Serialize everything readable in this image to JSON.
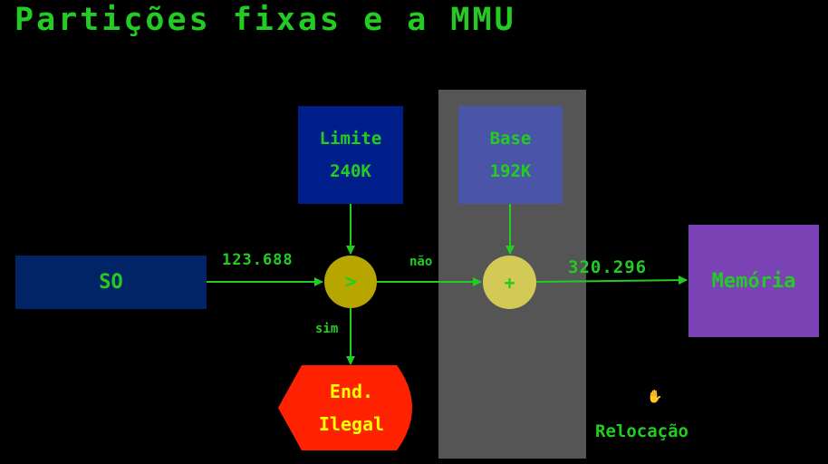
{
  "title": "Partições fixas e a MMU",
  "so_label": "SO",
  "limite": {
    "label": "Limite",
    "value": "240K"
  },
  "base": {
    "label": "Base",
    "value": "192K"
  },
  "memoria_label": "Memória",
  "compare_symbol": ">",
  "add_symbol": "+",
  "logical_address": "123.688",
  "physical_address": "320.296",
  "branch_no": "não",
  "branch_yes": "sim",
  "illegal": {
    "line1": "End.",
    "line2": "Ilegal"
  },
  "relocation_label": "Relocação",
  "colors": {
    "background": "#000000",
    "text": "#22cc22",
    "so_box": "#002466",
    "limite_box": "#001e8a",
    "base_box": "#4a55a8",
    "memoria_box": "#7b42b5",
    "comparator": "#b8a600",
    "adder": "#d3c957",
    "illegal_shape": "#ff2200",
    "illegal_text": "#ffff00",
    "relocation_band": "#555555"
  }
}
